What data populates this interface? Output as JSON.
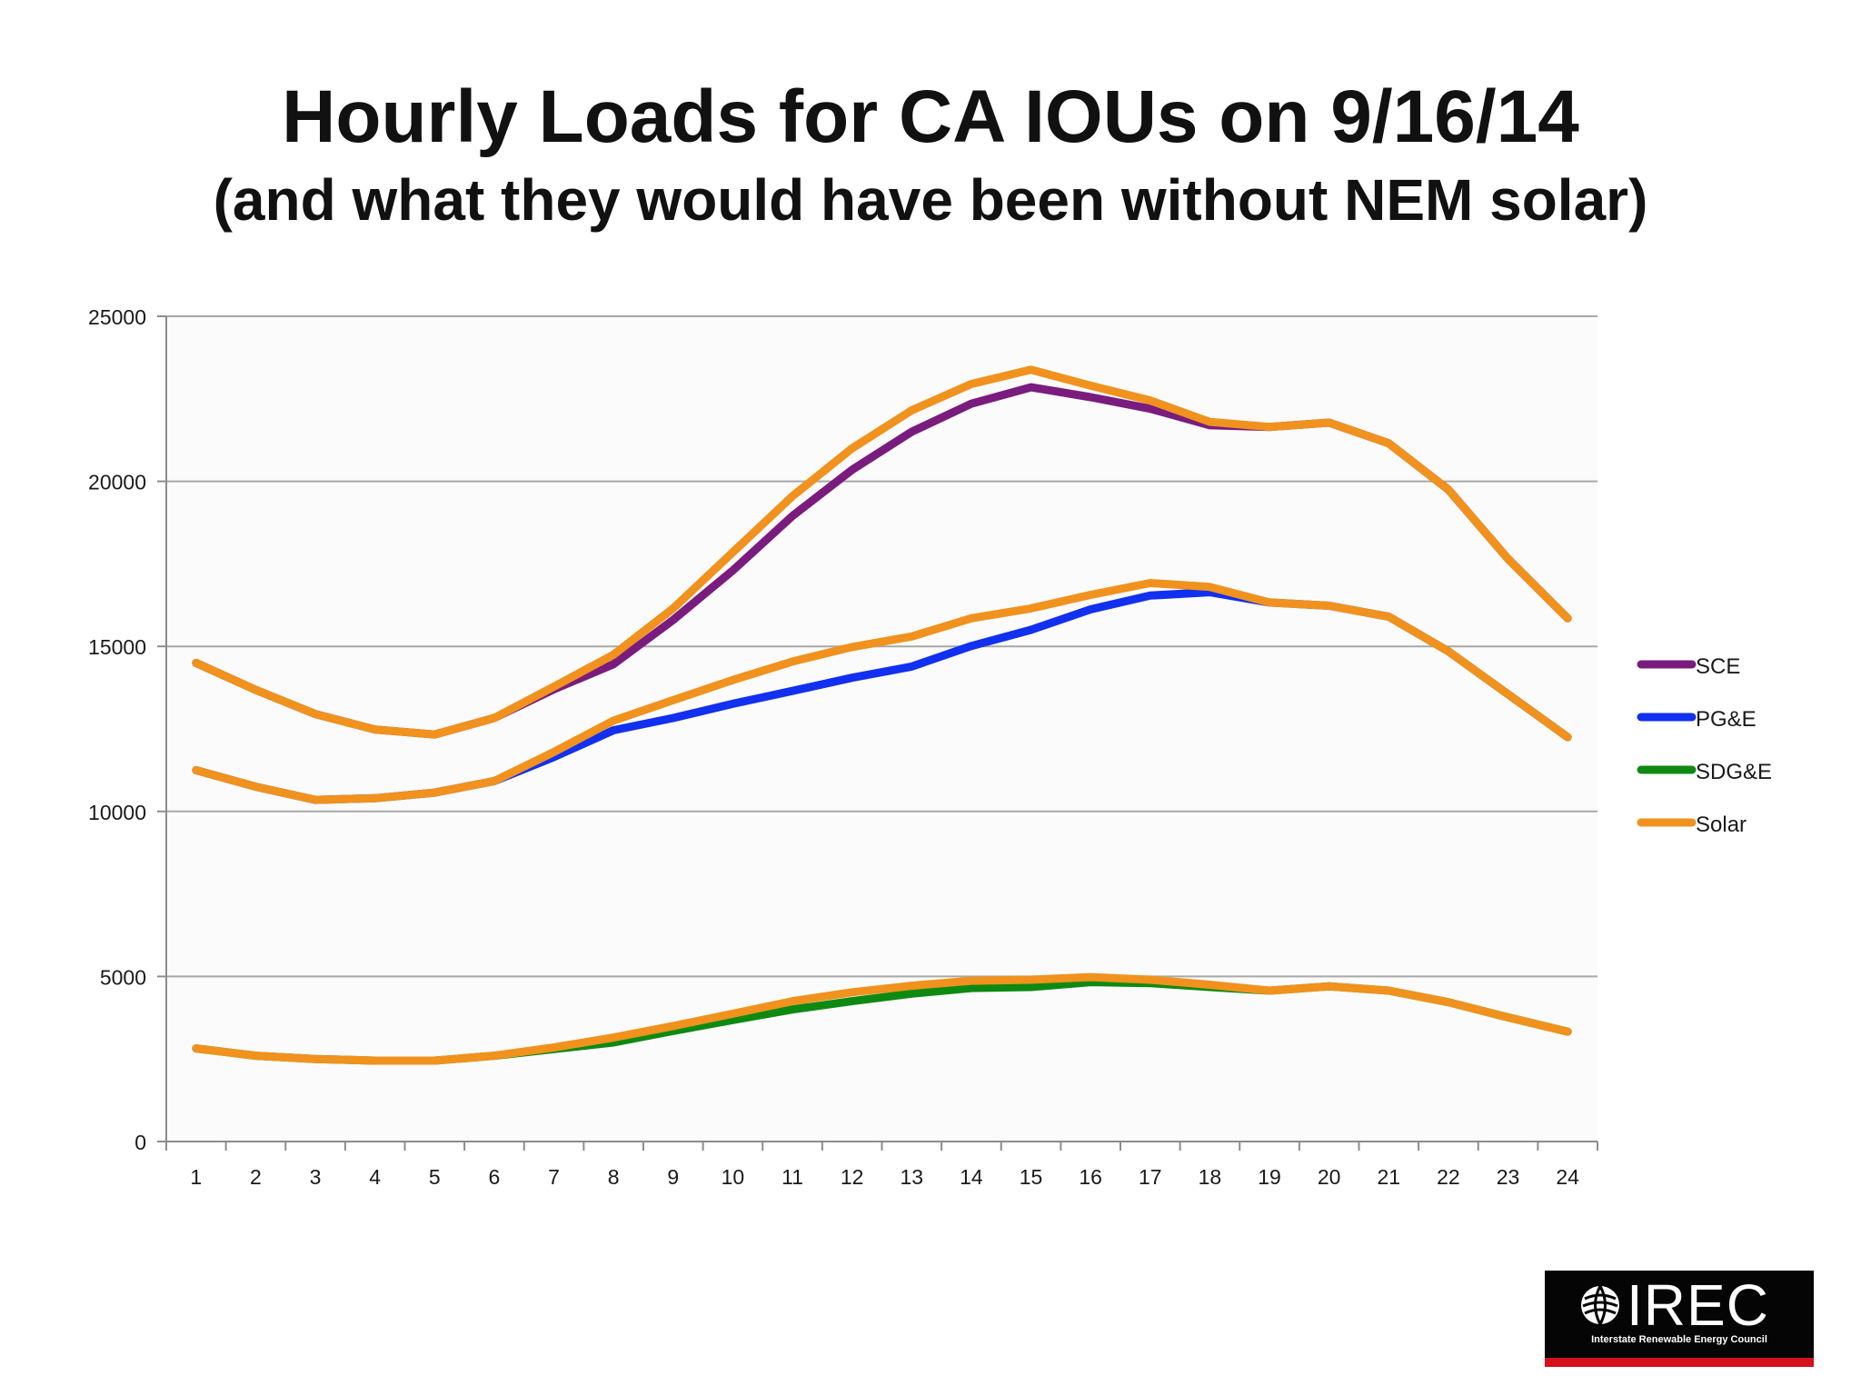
{
  "chart_data": {
    "type": "line",
    "title": "Hourly Loads for CA IOUs on 9/16/14",
    "subtitle": "(and what they would have been without NEM solar)",
    "xlabel": "",
    "ylabel": "",
    "x": [
      1,
      2,
      3,
      4,
      5,
      6,
      7,
      8,
      9,
      10,
      11,
      12,
      13,
      14,
      15,
      16,
      17,
      18,
      19,
      20,
      21,
      22,
      23,
      24
    ],
    "ylim": [
      0,
      25000
    ],
    "yticks": [
      0,
      5000,
      10000,
      15000,
      20000,
      25000
    ],
    "grid": true,
    "legend_position": "right",
    "series": [
      {
        "name": "SCE",
        "color": "#7a1c7e",
        "values": [
          14500,
          13680,
          12950,
          12480,
          12330,
          12830,
          13700,
          14460,
          15800,
          17300,
          18950,
          20350,
          21500,
          22350,
          22850,
          22550,
          22200,
          21700,
          21650,
          21780,
          21150,
          19750,
          17650,
          15850
        ]
      },
      {
        "name": "PG&E",
        "color": "#1230f0",
        "values": [
          11250,
          10750,
          10350,
          10400,
          10570,
          10920,
          11650,
          12460,
          12830,
          13260,
          13650,
          14050,
          14390,
          15010,
          15500,
          16120,
          16540,
          16640,
          16330,
          16230,
          15900,
          14850,
          13550,
          12250
        ]
      },
      {
        "name": "SDG&E",
        "color": "#0e8a12",
        "values": [
          2820,
          2600,
          2500,
          2450,
          2450,
          2600,
          2800,
          3000,
          3350,
          3680,
          4000,
          4250,
          4480,
          4650,
          4680,
          4830,
          4800,
          4680,
          4570,
          4700,
          4570,
          4220,
          3760,
          3330
        ]
      },
      {
        "name": "Solar",
        "color": "#f0921d",
        "values": [
          14500,
          13680,
          12950,
          12480,
          12330,
          12830,
          13780,
          14750,
          16150,
          17850,
          19550,
          21000,
          22150,
          22950,
          23380,
          22900,
          22450,
          21800,
          21650,
          21780,
          21150,
          19750,
          17650,
          15850
        ]
      },
      {
        "name": "",
        "color": "#f0921d",
        "values": [
          11250,
          10750,
          10350,
          10400,
          10570,
          10920,
          11800,
          12750,
          13370,
          13980,
          14540,
          14980,
          15300,
          15850,
          16150,
          16560,
          16920,
          16800,
          16330,
          16230,
          15900,
          14850,
          13550,
          12250
        ]
      },
      {
        "name": "",
        "color": "#f0921d",
        "values": [
          2820,
          2600,
          2500,
          2450,
          2450,
          2600,
          2850,
          3150,
          3500,
          3870,
          4250,
          4520,
          4720,
          4870,
          4900,
          4980,
          4900,
          4750,
          4570,
          4700,
          4570,
          4220,
          3760,
          3330
        ]
      }
    ]
  },
  "logo": {
    "name": "IREC",
    "tagline": "Interstate Renewable Energy Council"
  }
}
